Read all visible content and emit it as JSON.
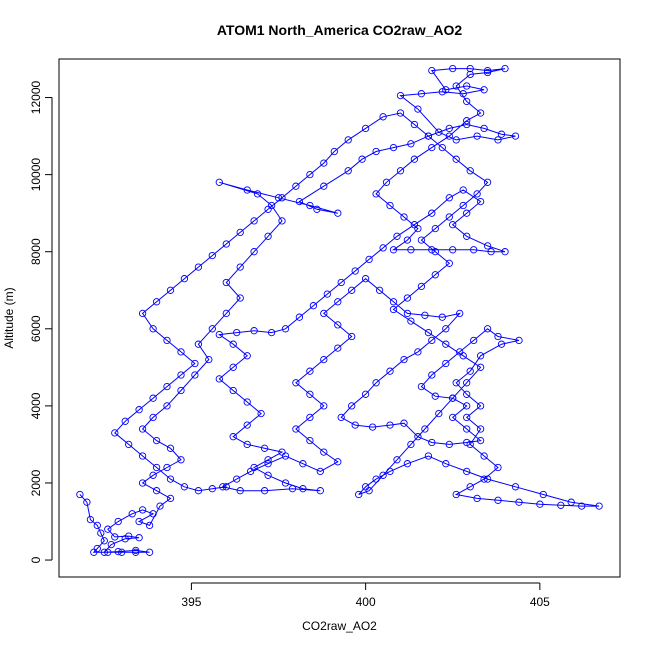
{
  "chart_data": {
    "type": "scatter",
    "title": "ATOM1 North_America CO2raw_AO2",
    "xlabel": "CO2raw_AO2",
    "ylabel": "Altitude (m)",
    "xlim": [
      391.2,
      407.3
    ],
    "ylim": [
      -440,
      13000
    ],
    "xticks": [
      395,
      400,
      405
    ],
    "yticks": [
      0,
      2000,
      4000,
      6000,
      8000,
      10000,
      12000
    ],
    "grid": false,
    "legend": "none",
    "color": "#0000ff",
    "marker": "open-circle",
    "connected": true,
    "series": [
      {
        "points": [
          [
            391.8,
            1700
          ],
          [
            392.0,
            1500
          ],
          [
            392.1,
            1050
          ],
          [
            392.3,
            900
          ],
          [
            392.4,
            700
          ],
          [
            392.5,
            500
          ],
          [
            392.3,
            300
          ],
          [
            392.2,
            200
          ],
          [
            392.6,
            200
          ],
          [
            393.0,
            200
          ],
          [
            393.4,
            200
          ],
          [
            393.8,
            200
          ],
          [
            393.4,
            250
          ],
          [
            392.9,
            220
          ],
          [
            392.5,
            200
          ],
          [
            392.7,
            400
          ],
          [
            393.1,
            550
          ],
          [
            393.5,
            580
          ],
          [
            393.2,
            620
          ],
          [
            392.8,
            600
          ],
          [
            392.6,
            800
          ],
          [
            392.9,
            1000
          ],
          [
            393.3,
            1200
          ],
          [
            393.6,
            1300
          ],
          [
            393.9,
            1200
          ],
          [
            393.5,
            1000
          ],
          [
            393.8,
            900
          ],
          [
            394.1,
            1400
          ],
          [
            394.4,
            1600
          ],
          [
            394.0,
            1800
          ],
          [
            393.6,
            2000
          ],
          [
            393.9,
            2200
          ],
          [
            394.3,
            2400
          ],
          [
            394.7,
            2600
          ],
          [
            394.4,
            2900
          ],
          [
            394.0,
            3100
          ],
          [
            393.6,
            3400
          ],
          [
            393.9,
            3700
          ],
          [
            394.3,
            4000
          ],
          [
            394.7,
            4400
          ],
          [
            395.1,
            4800
          ],
          [
            395.5,
            5200
          ],
          [
            395.2,
            5600
          ],
          [
            395.6,
            6000
          ],
          [
            396.0,
            6400
          ],
          [
            396.4,
            6800
          ],
          [
            396.0,
            7200
          ],
          [
            396.4,
            7600
          ],
          [
            396.8,
            8000
          ],
          [
            397.2,
            8400
          ],
          [
            397.6,
            8800
          ],
          [
            397.3,
            9200
          ],
          [
            396.9,
            9500
          ],
          [
            395.8,
            9800
          ],
          [
            396.6,
            9600
          ],
          [
            397.5,
            9400
          ],
          [
            398.4,
            9200
          ],
          [
            399.2,
            9000
          ],
          [
            398.6,
            9100
          ],
          [
            398.1,
            9300
          ],
          [
            398.8,
            9700
          ],
          [
            399.5,
            10100
          ],
          [
            399.9,
            10400
          ],
          [
            400.3,
            10600
          ],
          [
            400.8,
            10700
          ],
          [
            401.3,
            10800
          ],
          [
            401.8,
            11000
          ],
          [
            402.4,
            11200
          ],
          [
            402.9,
            11300
          ],
          [
            403.4,
            11200
          ],
          [
            403.9,
            11050
          ],
          [
            404.3,
            11000
          ],
          [
            403.8,
            10900
          ],
          [
            403.2,
            11000
          ],
          [
            402.6,
            10900
          ],
          [
            402.1,
            11100
          ],
          [
            401.5,
            11700
          ],
          [
            401.0,
            12050
          ],
          [
            401.6,
            12100
          ],
          [
            402.2,
            12150
          ],
          [
            402.8,
            12100
          ],
          [
            403.4,
            12200
          ],
          [
            402.9,
            12300
          ],
          [
            402.3,
            12200
          ],
          [
            401.9,
            12700
          ],
          [
            402.5,
            12750
          ],
          [
            403.0,
            12750
          ],
          [
            403.5,
            12700
          ],
          [
            404.0,
            12750
          ],
          [
            403.5,
            12650
          ],
          [
            403.0,
            12600
          ],
          [
            402.6,
            12300
          ],
          [
            402.9,
            11900
          ],
          [
            403.3,
            11600
          ],
          [
            402.9,
            11400
          ],
          [
            402.4,
            11000
          ],
          [
            401.9,
            10700
          ],
          [
            401.4,
            10400
          ],
          [
            401.0,
            10100
          ],
          [
            400.6,
            9800
          ],
          [
            400.3,
            9500
          ],
          [
            400.7,
            9200
          ],
          [
            401.1,
            8900
          ],
          [
            401.5,
            8600
          ],
          [
            401.2,
            8300
          ],
          [
            400.8,
            8050
          ],
          [
            401.3,
            8050
          ],
          [
            401.9,
            8050
          ],
          [
            402.5,
            8050
          ],
          [
            403.1,
            8050
          ],
          [
            403.6,
            8000
          ],
          [
            404.0,
            8000
          ],
          [
            403.5,
            8150
          ],
          [
            402.9,
            8400
          ],
          [
            402.5,
            8700
          ],
          [
            402.9,
            9000
          ],
          [
            403.3,
            9300
          ],
          [
            402.8,
            9600
          ],
          [
            402.4,
            9400
          ],
          [
            401.9,
            9000
          ],
          [
            401.4,
            8700
          ],
          [
            400.9,
            8400
          ],
          [
            400.5,
            8100
          ],
          [
            400.1,
            7800
          ],
          [
            399.7,
            7500
          ],
          [
            399.3,
            7200
          ],
          [
            398.9,
            6900
          ],
          [
            398.5,
            6600
          ],
          [
            398.1,
            6300
          ],
          [
            397.7,
            6000
          ],
          [
            397.3,
            5900
          ],
          [
            396.8,
            5950
          ],
          [
            396.3,
            5900
          ],
          [
            395.8,
            5850
          ],
          [
            396.2,
            5600
          ],
          [
            396.6,
            5300
          ],
          [
            396.2,
            5000
          ],
          [
            395.8,
            4700
          ],
          [
            396.2,
            4400
          ],
          [
            396.6,
            4100
          ],
          [
            397.0,
            3800
          ],
          [
            396.6,
            3500
          ],
          [
            396.2,
            3200
          ],
          [
            396.6,
            3000
          ],
          [
            397.1,
            2900
          ],
          [
            397.6,
            2800
          ],
          [
            397.2,
            2600
          ],
          [
            396.8,
            2400
          ],
          [
            397.2,
            2200
          ],
          [
            397.7,
            2000
          ],
          [
            398.2,
            1850
          ],
          [
            398.7,
            1800
          ],
          [
            397.9,
            1850
          ],
          [
            397.1,
            1800
          ],
          [
            396.4,
            1800
          ],
          [
            395.9,
            1900
          ],
          [
            396.3,
            2100
          ],
          [
            396.7,
            2300
          ],
          [
            397.2,
            2500
          ],
          [
            397.7,
            2700
          ],
          [
            398.2,
            2500
          ],
          [
            398.7,
            2300
          ],
          [
            399.2,
            2550
          ],
          [
            398.8,
            2800
          ],
          [
            398.4,
            3100
          ],
          [
            398.0,
            3400
          ],
          [
            398.4,
            3700
          ],
          [
            398.8,
            4000
          ],
          [
            398.4,
            4300
          ],
          [
            398.0,
            4600
          ],
          [
            398.4,
            4900
          ],
          [
            398.8,
            5200
          ],
          [
            399.2,
            5500
          ],
          [
            399.6,
            5800
          ],
          [
            399.2,
            6100
          ],
          [
            398.8,
            6400
          ],
          [
            399.2,
            6700
          ],
          [
            399.6,
            7000
          ],
          [
            400.0,
            7300
          ],
          [
            400.4,
            7000
          ],
          [
            400.8,
            6700
          ],
          [
            401.2,
            6400
          ],
          [
            401.7,
            6350
          ],
          [
            402.2,
            6300
          ],
          [
            402.7,
            6400
          ],
          [
            402.3,
            6000
          ],
          [
            401.9,
            5700
          ],
          [
            401.5,
            5400
          ],
          [
            401.1,
            5200
          ],
          [
            400.7,
            4900
          ],
          [
            400.3,
            4600
          ],
          [
            400.0,
            4300
          ],
          [
            399.6,
            4000
          ],
          [
            399.3,
            3700
          ],
          [
            399.7,
            3500
          ],
          [
            400.2,
            3450
          ],
          [
            400.7,
            3500
          ],
          [
            401.1,
            3550
          ],
          [
            401.5,
            3200
          ],
          [
            401.9,
            3050
          ],
          [
            402.4,
            3000
          ],
          [
            402.9,
            3050
          ],
          [
            403.3,
            3100
          ],
          [
            402.9,
            3400
          ],
          [
            402.5,
            3700
          ],
          [
            402.9,
            4000
          ],
          [
            402.5,
            4200
          ],
          [
            402.0,
            4250
          ],
          [
            401.6,
            4500
          ],
          [
            401.9,
            4800
          ],
          [
            402.3,
            5100
          ],
          [
            402.7,
            5400
          ],
          [
            403.1,
            5700
          ],
          [
            403.5,
            6000
          ],
          [
            403.8,
            5800
          ],
          [
            404.4,
            5700
          ],
          [
            403.9,
            5600
          ],
          [
            403.3,
            5300
          ],
          [
            403.0,
            4900
          ],
          [
            402.6,
            4600
          ],
          [
            402.9,
            4300
          ],
          [
            403.3,
            4000
          ],
          [
            402.9,
            3700
          ],
          [
            403.3,
            3400
          ],
          [
            403.0,
            3000
          ],
          [
            403.4,
            2700
          ],
          [
            403.8,
            2400
          ],
          [
            403.4,
            2100
          ],
          [
            403.0,
            1900
          ],
          [
            402.6,
            1700
          ],
          [
            403.2,
            1600
          ],
          [
            403.8,
            1550
          ],
          [
            404.4,
            1500
          ],
          [
            405.0,
            1450
          ],
          [
            405.6,
            1420
          ],
          [
            406.2,
            1400
          ],
          [
            406.7,
            1400
          ],
          [
            405.9,
            1500
          ],
          [
            405.1,
            1700
          ],
          [
            404.3,
            1900
          ],
          [
            403.5,
            2100
          ],
          [
            402.9,
            2300
          ],
          [
            402.3,
            2500
          ],
          [
            401.8,
            2700
          ],
          [
            401.2,
            2500
          ],
          [
            400.7,
            2300
          ],
          [
            400.3,
            2100
          ],
          [
            400.0,
            1900
          ],
          [
            399.8,
            1700
          ],
          [
            400.1,
            1800
          ],
          [
            400.5,
            2200
          ],
          [
            400.9,
            2600
          ],
          [
            401.3,
            3000
          ],
          [
            401.7,
            3400
          ],
          [
            402.1,
            3800
          ],
          [
            402.5,
            4200
          ],
          [
            402.9,
            4600
          ],
          [
            403.3,
            5000
          ],
          [
            402.8,
            5300
          ],
          [
            402.3,
            5600
          ],
          [
            401.8,
            5900
          ],
          [
            401.3,
            6200
          ],
          [
            400.8,
            6500
          ],
          [
            401.2,
            6800
          ],
          [
            401.6,
            7100
          ],
          [
            402.0,
            7400
          ],
          [
            402.4,
            7700
          ],
          [
            402.0,
            8000
          ],
          [
            401.6,
            8300
          ],
          [
            402.0,
            8600
          ],
          [
            402.4,
            8900
          ],
          [
            402.8,
            9200
          ],
          [
            403.2,
            9500
          ],
          [
            403.5,
            9800
          ],
          [
            403.0,
            10100
          ],
          [
            402.6,
            10400
          ],
          [
            402.2,
            10700
          ],
          [
            401.8,
            11000
          ],
          [
            401.4,
            11300
          ],
          [
            401.0,
            11600
          ],
          [
            400.5,
            11500
          ],
          [
            400.0,
            11200
          ],
          [
            399.5,
            10900
          ],
          [
            399.1,
            10600
          ],
          [
            398.8,
            10300
          ],
          [
            398.4,
            10000
          ],
          [
            398.0,
            9700
          ],
          [
            397.6,
            9400
          ],
          [
            397.2,
            9100
          ],
          [
            396.8,
            8800
          ],
          [
            396.4,
            8500
          ],
          [
            396.0,
            8200
          ],
          [
            395.6,
            7900
          ],
          [
            395.2,
            7600
          ],
          [
            394.8,
            7300
          ],
          [
            394.4,
            7000
          ],
          [
            394.0,
            6700
          ],
          [
            393.6,
            6400
          ],
          [
            393.9,
            6000
          ],
          [
            394.3,
            5700
          ],
          [
            394.7,
            5400
          ],
          [
            395.1,
            5100
          ],
          [
            394.7,
            4800
          ],
          [
            394.3,
            4500
          ],
          [
            393.9,
            4200
          ],
          [
            393.5,
            3900
          ],
          [
            393.1,
            3600
          ],
          [
            392.8,
            3300
          ],
          [
            393.2,
            3000
          ],
          [
            393.6,
            2700
          ],
          [
            394.0,
            2400
          ],
          [
            394.4,
            2100
          ],
          [
            394.8,
            1900
          ],
          [
            395.2,
            1800
          ],
          [
            395.6,
            1850
          ],
          [
            396.0,
            1900
          ]
        ]
      }
    ]
  }
}
